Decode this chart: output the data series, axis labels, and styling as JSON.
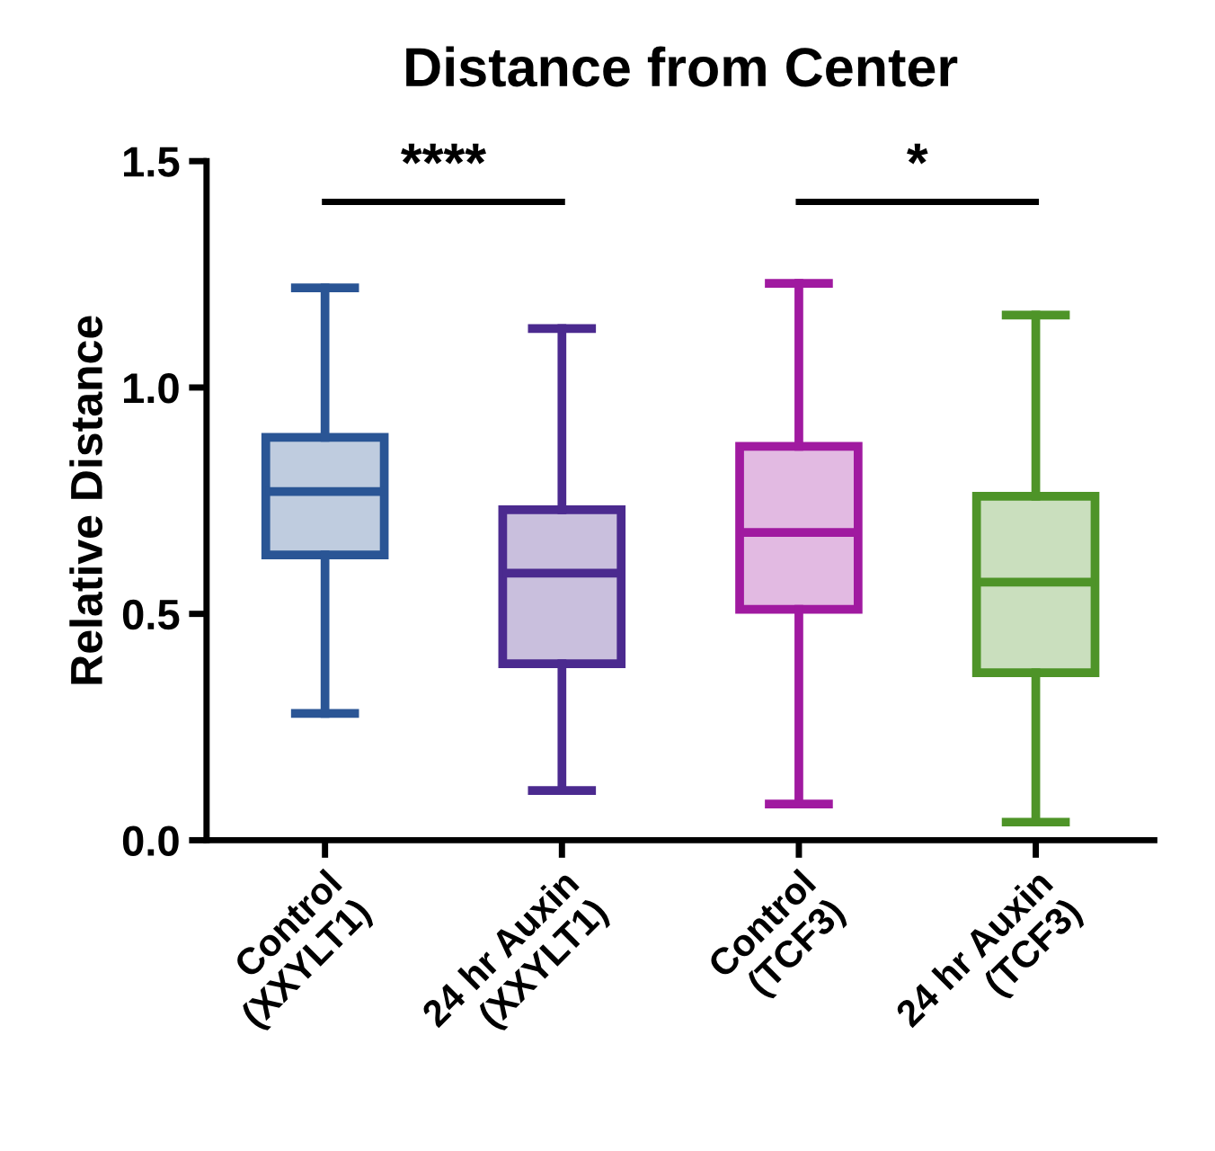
{
  "chart_data": {
    "type": "box",
    "title": "Distance from Center",
    "ylabel": "Relative Distance",
    "categories": [
      "Control\n(XXYLT1)",
      "24 hr Auxin\n(XXYLT1)",
      "Control\n(TCF3)",
      "24 hr Auxin\n(TCF3)"
    ],
    "boxes": [
      {
        "low": 0.28,
        "q1": 0.63,
        "median": 0.77,
        "q3": 0.89,
        "high": 1.22
      },
      {
        "low": 0.11,
        "q1": 0.39,
        "median": 0.59,
        "q3": 0.73,
        "high": 1.13
      },
      {
        "low": 0.08,
        "q1": 0.51,
        "median": 0.68,
        "q3": 0.87,
        "high": 1.23
      },
      {
        "low": 0.04,
        "q1": 0.37,
        "median": 0.57,
        "q3": 0.76,
        "high": 1.16
      }
    ],
    "colors": [
      "#2a5595",
      "#4b2a8f",
      "#a01aa0",
      "#4e9428"
    ],
    "ylim": [
      0,
      1.5
    ],
    "yticks": [
      {
        "value": 0,
        "label": "0.0"
      },
      {
        "value": 0.5,
        "label": "0.5"
      },
      {
        "value": 1.0,
        "label": "1.0"
      },
      {
        "value": 1.5,
        "label": "1.5"
      }
    ],
    "annotations": [
      "****",
      "*"
    ],
    "grid": false
  }
}
